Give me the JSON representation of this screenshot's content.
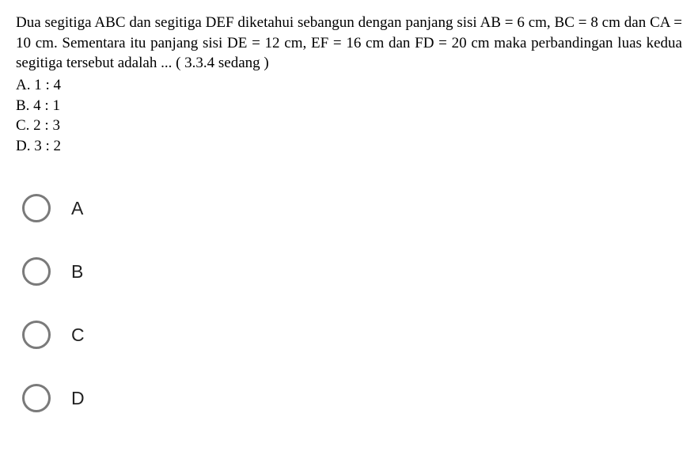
{
  "question": {
    "text": "Dua segitiga ABC dan segitiga DEF diketahui sebangun dengan panjang sisi AB = 6 cm, BC = 8 cm dan CA = 10 cm. Sementara itu panjang sisi DE = 12 cm, EF = 16 cm dan FD = 20 cm maka perbandingan luas kedua segitiga tersebut adalah ... ( 3.3.4 sedang )",
    "answers": [
      {
        "label": "A.  1 : 4"
      },
      {
        "label": "B.  4 : 1"
      },
      {
        "label": "C.  2 : 3"
      },
      {
        "label": "D.  3 : 2"
      }
    ]
  },
  "radios": [
    {
      "label": "A"
    },
    {
      "label": "B"
    },
    {
      "label": "C"
    },
    {
      "label": "D"
    }
  ],
  "colors": {
    "background": "#ffffff",
    "text": "#000000",
    "radio_border": "#7a7a7a",
    "radio_label": "#222222"
  },
  "typography": {
    "question_font": "Times New Roman",
    "question_fontsize": 19,
    "radio_font": "Arial",
    "radio_fontsize": 23
  }
}
